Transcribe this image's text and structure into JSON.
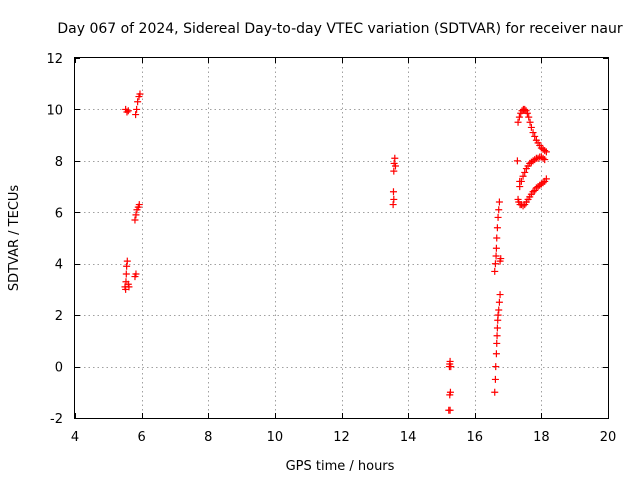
{
  "chart_data": {
    "type": "scatter",
    "title": "Day 067 of 2024, Sidereal Day-to-day VTEC variation (SDTVAR) for receiver naur",
    "xlabel": "GPS time / hours",
    "ylabel": "SDTVAR / TECUs",
    "xlim": [
      4,
      20
    ],
    "ylim": [
      -2,
      12
    ],
    "xticks": [
      4,
      6,
      8,
      10,
      12,
      14,
      16,
      18,
      20
    ],
    "yticks": [
      -2,
      0,
      2,
      4,
      6,
      8,
      10,
      12
    ],
    "grid": true,
    "marker": "plus",
    "color": "#ff0000",
    "series": [
      {
        "name": "SDTVAR",
        "points": [
          [
            5.5,
            3.1
          ],
          [
            5.52,
            3.0
          ],
          [
            5.53,
            3.3
          ],
          [
            5.54,
            3.6
          ],
          [
            5.55,
            3.9
          ],
          [
            5.57,
            4.1
          ],
          [
            5.6,
            3.2
          ],
          [
            5.62,
            3.1
          ],
          [
            5.52,
            10.0
          ],
          [
            5.56,
            9.9
          ],
          [
            5.6,
            9.95
          ],
          [
            5.8,
            3.5
          ],
          [
            5.83,
            3.6
          ],
          [
            5.8,
            5.7
          ],
          [
            5.83,
            5.9
          ],
          [
            5.86,
            6.1
          ],
          [
            5.9,
            6.2
          ],
          [
            5.93,
            6.3
          ],
          [
            5.82,
            9.8
          ],
          [
            5.85,
            10.0
          ],
          [
            5.88,
            10.3
          ],
          [
            5.92,
            10.5
          ],
          [
            5.95,
            10.6
          ],
          [
            13.55,
            6.3
          ],
          [
            13.57,
            6.5
          ],
          [
            13.56,
            6.8
          ],
          [
            13.57,
            7.6
          ],
          [
            13.58,
            7.9
          ],
          [
            13.6,
            8.1
          ],
          [
            13.62,
            7.8
          ],
          [
            15.22,
            -1.7
          ],
          [
            15.26,
            -1.7
          ],
          [
            15.25,
            -1.1
          ],
          [
            15.27,
            -1.0
          ],
          [
            15.24,
            0.0
          ],
          [
            15.25,
            0.1
          ],
          [
            15.26,
            0.2
          ],
          [
            15.28,
            0.0
          ],
          [
            16.6,
            -1.0
          ],
          [
            16.62,
            -0.5
          ],
          [
            16.63,
            0.0
          ],
          [
            16.65,
            0.5
          ],
          [
            16.66,
            0.9
          ],
          [
            16.67,
            1.2
          ],
          [
            16.68,
            1.5
          ],
          [
            16.69,
            1.8
          ],
          [
            16.7,
            2.0
          ],
          [
            16.72,
            2.2
          ],
          [
            16.74,
            2.5
          ],
          [
            16.76,
            2.8
          ],
          [
            16.6,
            3.7
          ],
          [
            16.62,
            4.0
          ],
          [
            16.64,
            4.3
          ],
          [
            16.65,
            4.6
          ],
          [
            16.66,
            5.0
          ],
          [
            16.68,
            5.4
          ],
          [
            16.7,
            5.8
          ],
          [
            16.72,
            6.1
          ],
          [
            16.74,
            6.4
          ],
          [
            16.76,
            4.1
          ],
          [
            16.78,
            4.2
          ],
          [
            17.28,
            8.0
          ],
          [
            17.3,
            6.5
          ],
          [
            17.32,
            6.4
          ],
          [
            17.35,
            7.2
          ],
          [
            17.36,
            6.3
          ],
          [
            17.3,
            9.5
          ],
          [
            17.34,
            9.7
          ],
          [
            17.38,
            9.85
          ],
          [
            17.42,
            9.95
          ],
          [
            17.46,
            10.0
          ],
          [
            17.5,
            10.0
          ],
          [
            17.54,
            9.95
          ],
          [
            17.58,
            9.85
          ],
          [
            17.62,
            9.7
          ],
          [
            17.66,
            9.5
          ],
          [
            17.7,
            9.3
          ],
          [
            17.75,
            9.1
          ],
          [
            17.8,
            8.95
          ],
          [
            17.85,
            8.8
          ],
          [
            17.9,
            8.7
          ],
          [
            17.95,
            8.6
          ],
          [
            18.0,
            8.5
          ],
          [
            18.05,
            8.45
          ],
          [
            18.1,
            8.4
          ],
          [
            18.15,
            8.35
          ],
          [
            17.35,
            7.0
          ],
          [
            17.4,
            7.2
          ],
          [
            17.45,
            7.4
          ],
          [
            17.5,
            7.55
          ],
          [
            17.55,
            7.7
          ],
          [
            17.6,
            7.8
          ],
          [
            17.65,
            7.9
          ],
          [
            17.7,
            7.95
          ],
          [
            17.75,
            8.0
          ],
          [
            17.8,
            8.05
          ],
          [
            17.85,
            8.1
          ],
          [
            17.9,
            8.1
          ],
          [
            17.95,
            8.15
          ],
          [
            18.0,
            8.15
          ],
          [
            18.05,
            8.1
          ],
          [
            18.1,
            8.05
          ],
          [
            17.4,
            6.3
          ],
          [
            17.45,
            6.25
          ],
          [
            17.5,
            6.3
          ],
          [
            17.55,
            6.4
          ],
          [
            17.6,
            6.5
          ],
          [
            17.65,
            6.6
          ],
          [
            17.7,
            6.7
          ],
          [
            17.75,
            6.8
          ],
          [
            17.8,
            6.85
          ],
          [
            17.85,
            6.95
          ],
          [
            17.9,
            7.0
          ],
          [
            17.95,
            7.05
          ],
          [
            18.0,
            7.1
          ],
          [
            18.05,
            7.15
          ],
          [
            18.1,
            7.2
          ],
          [
            18.15,
            7.3
          ]
        ]
      }
    ]
  }
}
